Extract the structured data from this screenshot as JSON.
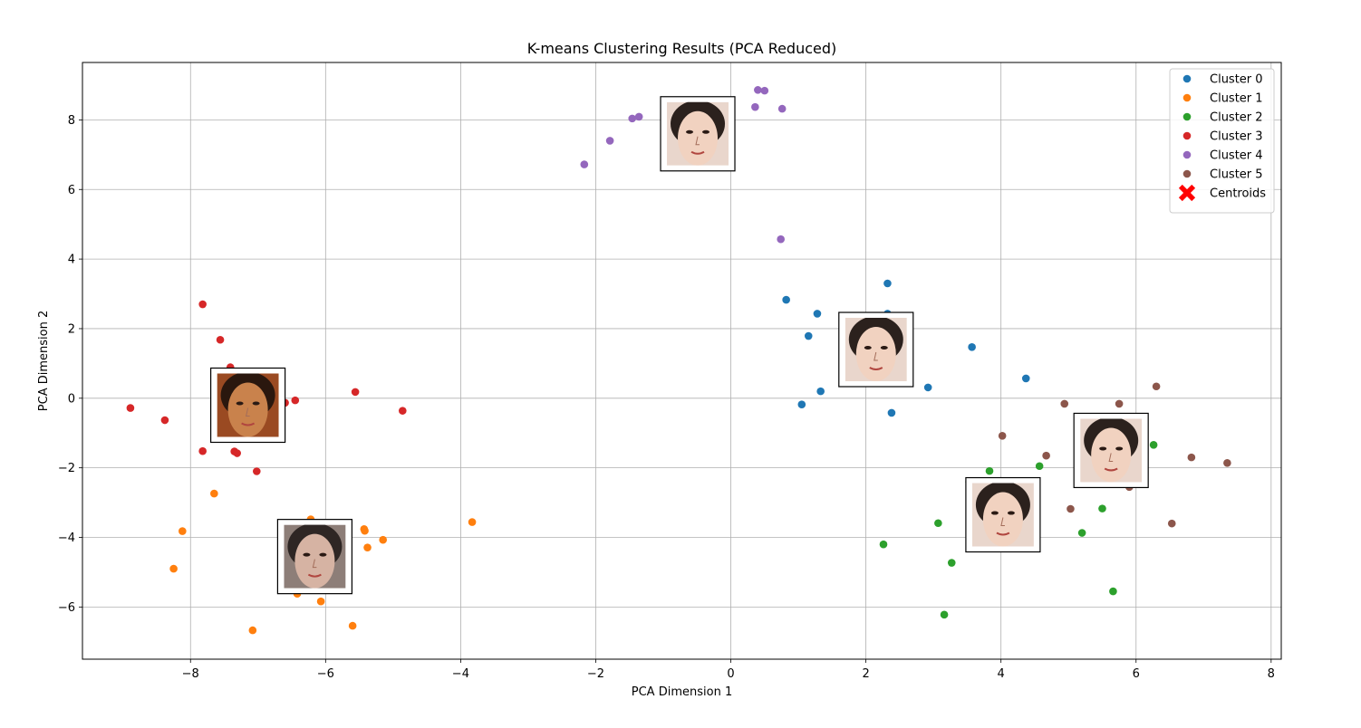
{
  "chart_data": {
    "type": "scatter",
    "title": "K-means Clustering Results (PCA Reduced)",
    "xlabel": "PCA Dimension 1",
    "ylabel": "PCA Dimension 2",
    "xlim": [
      -9.6,
      8.15
    ],
    "ylim": [
      -7.5,
      9.65
    ],
    "xticks": [
      -8,
      -6,
      -4,
      -2,
      0,
      2,
      4,
      6,
      8
    ],
    "yticks": [
      -6,
      -4,
      -2,
      0,
      2,
      4,
      6,
      8
    ],
    "grid": true,
    "legend_position": "top-right",
    "series": [
      {
        "name": "Cluster 0",
        "color": "#1f77b4",
        "x": [
          0.82,
          1.28,
          1.15,
          2.32,
          2.32,
          1.05,
          1.33,
          3.57,
          2.92,
          2.38,
          4.37
        ],
        "y": [
          2.83,
          2.43,
          1.79,
          3.3,
          2.43,
          -0.18,
          0.2,
          1.47,
          0.31,
          -0.42,
          0.57
        ]
      },
      {
        "name": "Cluster 1",
        "color": "#ff7f0e",
        "x": [
          -7.65,
          -8.12,
          -8.25,
          -6.22,
          -5.43,
          -5.42,
          -5.38,
          -5.15,
          -3.83,
          -6.42,
          -6.07,
          -5.6,
          -7.08
        ],
        "y": [
          -2.74,
          -3.82,
          -4.9,
          -3.48,
          -3.76,
          -3.81,
          -4.29,
          -4.07,
          -3.56,
          -5.62,
          -5.84,
          -6.54,
          -6.67
        ]
      },
      {
        "name": "Cluster 2",
        "color": "#2ca02c",
        "x": [
          6.26,
          3.83,
          3.53,
          4.57,
          3.07,
          2.26,
          3.27,
          5.5,
          5.2,
          5.66,
          3.16
        ],
        "y": [
          -1.34,
          -2.09,
          -2.41,
          -1.95,
          -3.59,
          -4.2,
          -4.73,
          -3.17,
          -3.87,
          -5.55,
          -6.22
        ]
      },
      {
        "name": "Cluster 3",
        "color": "#d62728",
        "x": [
          -7.82,
          -7.56,
          -7.41,
          -8.89,
          -8.38,
          -6.6,
          -6.45,
          -5.56,
          -4.86,
          -7.82,
          -7.35,
          -7.31,
          -7.02
        ],
        "y": [
          2.7,
          1.68,
          0.89,
          -0.28,
          -0.63,
          -0.13,
          -0.06,
          0.18,
          -0.36,
          -1.52,
          -1.53,
          -1.58,
          -2.1
        ]
      },
      {
        "name": "Cluster 4",
        "color": "#9467bd",
        "x": [
          0.4,
          0.5,
          0.36,
          0.76,
          -1.46,
          -1.36,
          -1.79,
          -2.17,
          0.74
        ],
        "y": [
          8.86,
          8.84,
          8.37,
          8.32,
          8.04,
          8.09,
          7.4,
          6.72,
          4.57
        ]
      },
      {
        "name": "Cluster 5",
        "color": "#8c564b",
        "x": [
          6.3,
          4.94,
          5.75,
          4.02,
          4.67,
          6.82,
          7.35,
          3.65,
          5.9,
          5.03,
          6.53
        ],
        "y": [
          0.34,
          -0.16,
          -0.16,
          -1.08,
          -1.65,
          -1.7,
          -1.86,
          -2.56,
          -2.55,
          -3.18,
          -3.6
        ]
      },
      {
        "name": "Centroids",
        "color": "#ff0000",
        "marker": "X",
        "x": [],
        "y": []
      }
    ],
    "centroid_images": [
      {
        "cluster": 4,
        "x": -0.49,
        "y": 7.6,
        "tone": "pale"
      },
      {
        "cluster": 0,
        "x": 2.15,
        "y": 1.4,
        "tone": "pale"
      },
      {
        "cluster": 3,
        "x": -7.15,
        "y": -0.2,
        "tone": "warm"
      },
      {
        "cluster": 1,
        "x": -6.16,
        "y": -4.55,
        "tone": "neutral"
      },
      {
        "cluster": 5,
        "x": 5.63,
        "y": -1.5,
        "tone": "pale"
      },
      {
        "cluster": 2,
        "x": 4.03,
        "y": -3.35,
        "tone": "pale"
      }
    ]
  }
}
